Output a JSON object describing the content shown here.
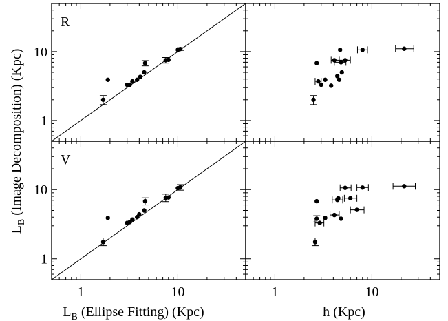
{
  "chart_data": [
    {
      "panel": "top-left",
      "type": "scatter",
      "label": "R",
      "xscale": "log",
      "yscale": "log",
      "xlim": [
        0.5,
        50
      ],
      "ylim": [
        0.5,
        50
      ],
      "identity_line": true,
      "points": [
        {
          "x": 1.7,
          "y": 2.0,
          "yerr": [
            1.7,
            2.3
          ]
        },
        {
          "x": 1.9,
          "y": 3.9
        },
        {
          "x": 3.0,
          "y": 3.3
        },
        {
          "x": 3.2,
          "y": 3.3
        },
        {
          "x": 3.4,
          "y": 3.7
        },
        {
          "x": 3.8,
          "y": 3.9
        },
        {
          "x": 4.1,
          "y": 4.3
        },
        {
          "x": 4.5,
          "y": 5.0
        },
        {
          "x": 4.6,
          "y": 6.8,
          "yerr": [
            6.2,
            7.4
          ]
        },
        {
          "x": 7.5,
          "y": 7.5,
          "yerr": [
            6.8,
            8.2
          ]
        },
        {
          "x": 8.0,
          "y": 7.6
        },
        {
          "x": 10.0,
          "y": 10.6
        },
        {
          "x": 10.6,
          "y": 10.9,
          "yerr": [
            10.4,
            11.4
          ]
        }
      ]
    },
    {
      "panel": "top-right",
      "type": "scatter",
      "xscale": "log",
      "yscale": "log",
      "xlim": [
        0.5,
        50
      ],
      "ylim": [
        0.5,
        50
      ],
      "points": [
        {
          "x": 2.5,
          "y": 2.0,
          "yerr": [
            1.7,
            2.3
          ]
        },
        {
          "x": 2.7,
          "y": 6.8
        },
        {
          "x": 2.8,
          "y": 3.7,
          "xerr": [
            2.6,
            3.0
          ]
        },
        {
          "x": 3.0,
          "y": 3.3
        },
        {
          "x": 3.3,
          "y": 3.9
        },
        {
          "x": 3.8,
          "y": 3.2
        },
        {
          "x": 4.1,
          "y": 7.5,
          "xerr": [
            3.8,
            4.6
          ]
        },
        {
          "x": 4.4,
          "y": 4.4
        },
        {
          "x": 4.6,
          "y": 3.9
        },
        {
          "x": 4.7,
          "y": 10.6
        },
        {
          "x": 4.8,
          "y": 7.0,
          "xerr": [
            4.1,
            5.4
          ]
        },
        {
          "x": 4.9,
          "y": 5.0
        },
        {
          "x": 5.3,
          "y": 7.5,
          "xerr": [
            4.6,
            6.0
          ]
        },
        {
          "x": 8.0,
          "y": 10.6,
          "xerr": [
            7.1,
            9.0
          ]
        },
        {
          "x": 21.5,
          "y": 11.0,
          "xerr": [
            17.5,
            27.0
          ]
        }
      ]
    },
    {
      "panel": "bottom-left",
      "type": "scatter",
      "label": "V",
      "xscale": "log",
      "yscale": "log",
      "xlim": [
        0.5,
        50
      ],
      "ylim": [
        0.5,
        50
      ],
      "identity_line": true,
      "points": [
        {
          "x": 1.7,
          "y": 1.75,
          "yerr": [
            1.55,
            2.0
          ]
        },
        {
          "x": 1.9,
          "y": 3.9
        },
        {
          "x": 3.0,
          "y": 3.3
        },
        {
          "x": 3.2,
          "y": 3.4
        },
        {
          "x": 3.4,
          "y": 3.7
        },
        {
          "x": 3.8,
          "y": 4.0
        },
        {
          "x": 4.0,
          "y": 4.4
        },
        {
          "x": 4.5,
          "y": 5.0
        },
        {
          "x": 4.6,
          "y": 6.8,
          "yerr": [
            6.0,
            7.6
          ]
        },
        {
          "x": 7.5,
          "y": 7.6,
          "yerr": [
            6.7,
            8.6
          ]
        },
        {
          "x": 8.0,
          "y": 7.7
        },
        {
          "x": 10.0,
          "y": 10.5
        },
        {
          "x": 10.6,
          "y": 10.8,
          "yerr": [
            9.8,
            11.8
          ]
        }
      ]
    },
    {
      "panel": "bottom-right",
      "type": "scatter",
      "xscale": "log",
      "yscale": "log",
      "xlim": [
        0.5,
        50
      ],
      "ylim": [
        0.5,
        50
      ],
      "points": [
        {
          "x": 2.6,
          "y": 1.75,
          "yerr": [
            1.55,
            2.0
          ]
        },
        {
          "x": 2.7,
          "y": 6.8
        },
        {
          "x": 2.7,
          "y": 3.8,
          "yerr": [
            3.4,
            4.2
          ]
        },
        {
          "x": 2.9,
          "y": 3.3,
          "xerr": [
            2.6,
            3.2
          ]
        },
        {
          "x": 3.3,
          "y": 3.9
        },
        {
          "x": 4.1,
          "y": 4.3,
          "xerr": [
            3.7,
            4.6
          ]
        },
        {
          "x": 4.4,
          "y": 7.1,
          "xerr": [
            3.9,
            5.0
          ]
        },
        {
          "x": 4.5,
          "y": 7.5
        },
        {
          "x": 4.8,
          "y": 3.8
        },
        {
          "x": 5.3,
          "y": 10.6,
          "xerr": [
            4.7,
            6.1
          ]
        },
        {
          "x": 6.0,
          "y": 7.5,
          "xerr": [
            5.2,
            7.0
          ]
        },
        {
          "x": 7.0,
          "y": 5.1,
          "xerr": [
            6.0,
            8.3
          ]
        },
        {
          "x": 8.0,
          "y": 10.7,
          "xerr": [
            7.0,
            9.2
          ]
        },
        {
          "x": 21.5,
          "y": 11.2,
          "xerr": [
            16.5,
            28.0
          ]
        }
      ]
    }
  ],
  "axes": {
    "x_ticks": [
      "1",
      "10"
    ],
    "y_ticks": [
      "1",
      "10"
    ],
    "xlabel_left": {
      "main": "L",
      "sub": "B",
      "rest": " (Ellipse Fitting) (Kpc)"
    },
    "xlabel_right": "h (Kpc)",
    "ylabel": {
      "main": "L",
      "sub": "B",
      "rest": " (Image Decomposition) (Kpc)"
    }
  }
}
